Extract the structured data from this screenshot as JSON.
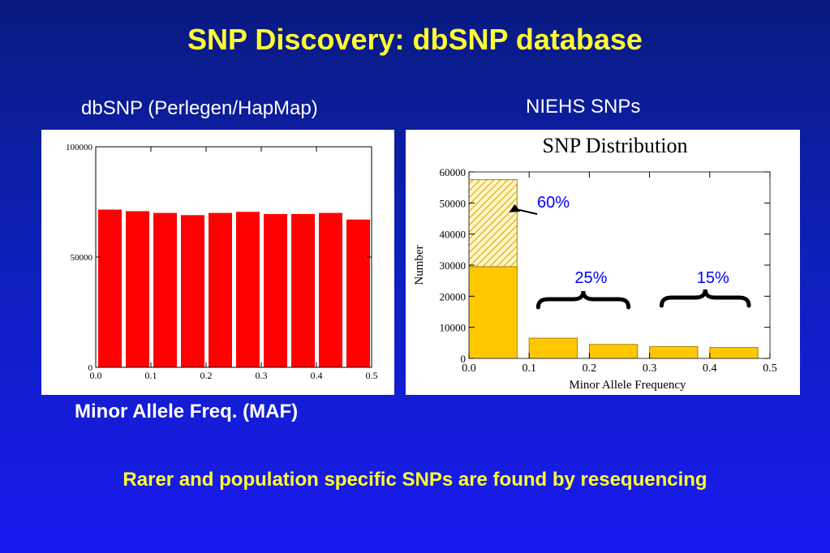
{
  "slide": {
    "title": "SNP Discovery:  dbSNP database",
    "left_subtitle": "dbSNP (Perlegen/HapMap)",
    "right_subtitle": "NIEHS SNPs",
    "maf_label": "Minor Allele Freq. (MAF)",
    "footer": "Rarer and population specific SNPs are found by resequencing"
  },
  "chart_data": [
    {
      "type": "bar",
      "title": "",
      "xlabel": "",
      "ylabel": "",
      "x_ticks": [
        "0.0",
        "0.1",
        "0.2",
        "0.3",
        "0.4",
        "0.5"
      ],
      "y_ticks": [
        "0",
        "50000",
        "100000"
      ],
      "xlim": [
        0,
        0.5
      ],
      "ylim": [
        0,
        100000
      ],
      "bar_color": "#ff0000",
      "bins": [
        {
          "x0": 0.0,
          "x1": 0.05,
          "value": 71500
        },
        {
          "x0": 0.05,
          "x1": 0.1,
          "value": 70800
        },
        {
          "x0": 0.1,
          "x1": 0.15,
          "value": 70000
        },
        {
          "x0": 0.15,
          "x1": 0.2,
          "value": 69000
        },
        {
          "x0": 0.2,
          "x1": 0.25,
          "value": 70000
        },
        {
          "x0": 0.25,
          "x1": 0.3,
          "value": 70500
        },
        {
          "x0": 0.3,
          "x1": 0.35,
          "value": 69500
        },
        {
          "x0": 0.35,
          "x1": 0.4,
          "value": 69500
        },
        {
          "x0": 0.4,
          "x1": 0.45,
          "value": 70000
        },
        {
          "x0": 0.45,
          "x1": 0.5,
          "value": 67000
        }
      ]
    },
    {
      "type": "bar",
      "title": "SNP Distribution",
      "xlabel": "Minor Allele Frequency",
      "ylabel": "Number",
      "x_ticks": [
        "0.0",
        "0.1",
        "0.2",
        "0.3",
        "0.4",
        "0.5"
      ],
      "y_ticks": [
        "0",
        "10000",
        "20000",
        "30000",
        "40000",
        "50000",
        "60000"
      ],
      "xlim": [
        0,
        0.5
      ],
      "ylim": [
        0,
        60000
      ],
      "bar_color": "#ffc800",
      "hatch_color": "#e0a800",
      "bins": [
        {
          "x0": 0.0,
          "x1": 0.08,
          "value": 29500,
          "hatched_top": 57500
        },
        {
          "x0": 0.1,
          "x1": 0.18,
          "value": 6500
        },
        {
          "x0": 0.2,
          "x1": 0.28,
          "value": 4500
        },
        {
          "x0": 0.3,
          "x1": 0.38,
          "value": 3800
        },
        {
          "x0": 0.4,
          "x1": 0.48,
          "value": 3500
        }
      ],
      "annotations": [
        {
          "text": "60%",
          "target": "first bar (hatched part)"
        },
        {
          "text": "25%",
          "target": "bins 0.1–0.3"
        },
        {
          "text": "15%",
          "target": "bins 0.3–0.5"
        }
      ],
      "annotation_color": "#0000ff"
    }
  ]
}
